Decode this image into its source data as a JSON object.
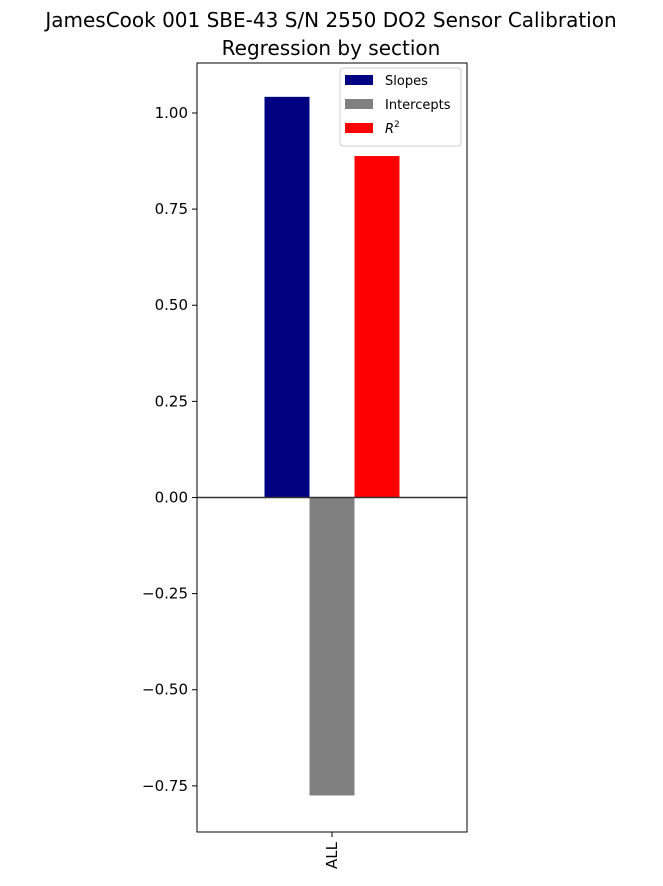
{
  "chart_data": {
    "type": "bar",
    "title": "JamesCook 001 SBE-43 S/N 2550 DO2 Sensor Calibration",
    "subtitle": "Regression by section",
    "xlabel": "",
    "ylabel": "",
    "categories": [
      "ALL"
    ],
    "ylim": [
      -0.87,
      1.13
    ],
    "yticks": [
      1.0,
      0.75,
      0.5,
      0.25,
      0.0,
      -0.25,
      -0.5,
      -0.75
    ],
    "ytick_labels": [
      "1.00",
      "0.75",
      "0.50",
      "0.25",
      "0.00",
      "−0.25",
      "−0.50",
      "−0.75"
    ],
    "grid": false,
    "legend_position": "top-right",
    "zero_line": true,
    "series": [
      {
        "name": "Slopes",
        "values": [
          1.042
        ],
        "color": "#000080"
      },
      {
        "name": "Intercepts",
        "values": [
          -0.775
        ],
        "color": "#808080"
      },
      {
        "name": "R^2",
        "values": [
          0.888
        ],
        "color": "#ff0000"
      }
    ]
  }
}
